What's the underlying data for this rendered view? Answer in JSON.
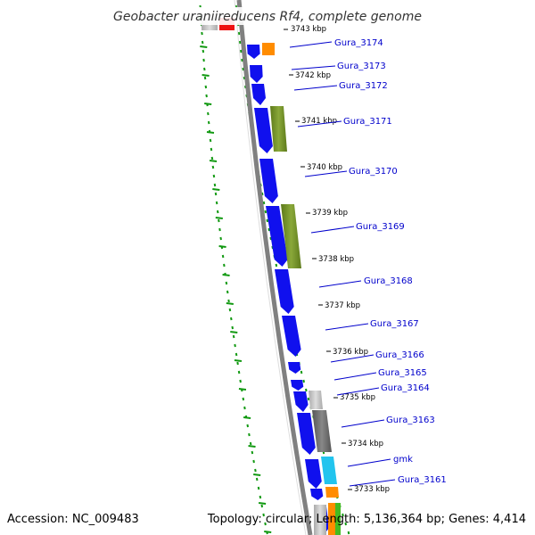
{
  "title": "Geobacter uraniireducens Rf4, complete genome",
  "accession": "Accession: NC_009483",
  "summary": "Topology: circular; Length: 5,136,364 bp; Genes: 4,414",
  "colors": {
    "backbone": "#808080",
    "gc_ticks": "#119911",
    "gene_forward": "#1010ee",
    "cds_olive": "#6e8b23",
    "cds_orange": "#ff8c00",
    "cds_gray": "#bbbbbb",
    "cds_darkgray": "#666666",
    "cds_cyan": "#22c4ee",
    "cds_red": "#ee1111",
    "label_line": "#0000cc"
  },
  "kbp_markers": [
    "3743 kbp",
    "3742 kbp",
    "3741 kbp",
    "3740 kbp",
    "3739 kbp",
    "3738 kbp",
    "3737 kbp",
    "3736 kbp",
    "3735 kbp",
    "3734 kbp",
    "3733 kbp"
  ],
  "gene_labels": [
    "Gura_3174",
    "Gura_3173",
    "Gura_3172",
    "Gura_3171",
    "Gura_3170",
    "Gura_3169",
    "Gura_3168",
    "Gura_3167",
    "Gura_3166",
    "Gura_3165",
    "Gura_3164",
    "Gura_3163",
    "gmk",
    "Gura_3161"
  ]
}
